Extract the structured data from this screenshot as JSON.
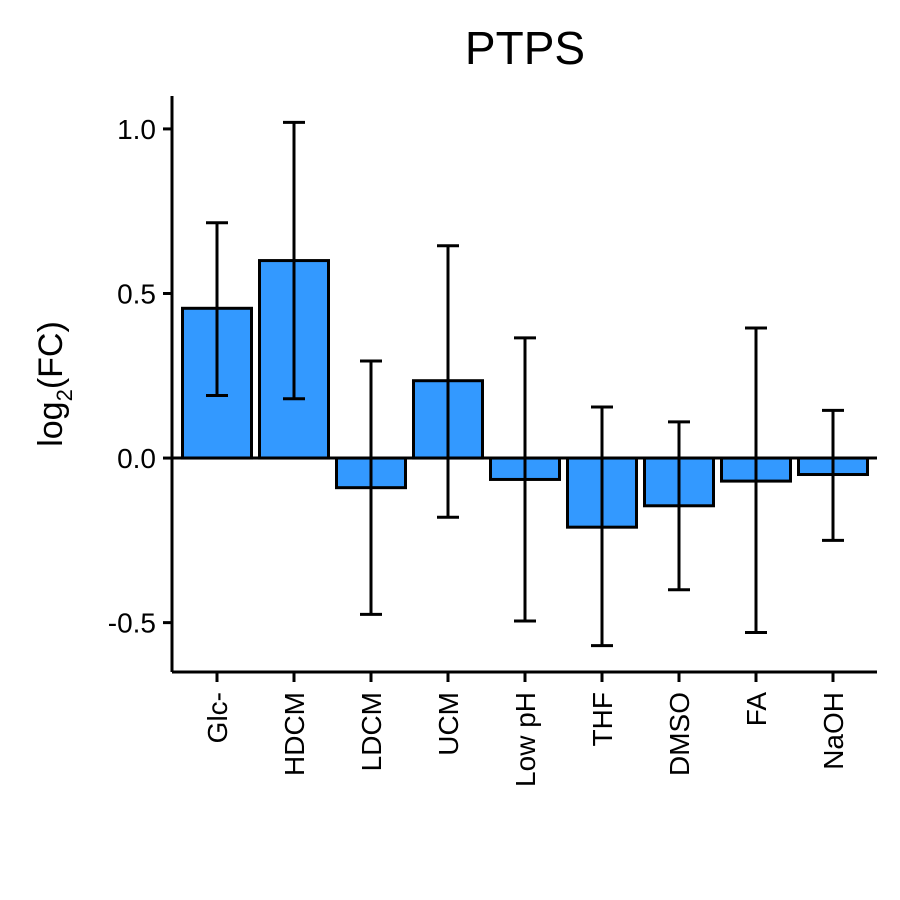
{
  "chart_data": {
    "type": "bar",
    "title": "PTPS",
    "xlabel": "",
    "ylabel": {
      "base": "log",
      "subscript": "2",
      "rest": "(FC)"
    },
    "categories": [
      "Glc-",
      "HDCM",
      "LDCM",
      "UCM",
      "Low pH",
      "THF",
      "DMSO",
      "FA",
      "NaOH"
    ],
    "values": [
      0.455,
      0.6,
      -0.09,
      0.235,
      -0.065,
      -0.21,
      -0.145,
      -0.07,
      -0.05
    ],
    "error_low": [
      0.19,
      0.18,
      -0.475,
      -0.18,
      -0.495,
      -0.57,
      -0.4,
      -0.53,
      -0.25
    ],
    "error_high": [
      0.715,
      1.02,
      0.295,
      0.645,
      0.365,
      0.155,
      0.11,
      0.395,
      0.145
    ],
    "ylim": [
      -0.65,
      1.1
    ],
    "yticks": [
      -0.5,
      0.0,
      0.5,
      1.0
    ],
    "ytick_labels": [
      "-0.5",
      "0.0",
      "0.5",
      "1.0"
    ],
    "grid": false,
    "legend": "none",
    "bar_color": "#3399FF",
    "edge_color": "#000000"
  }
}
